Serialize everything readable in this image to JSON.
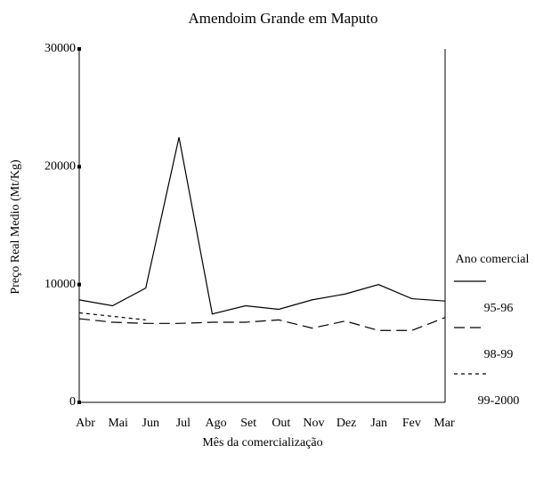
{
  "chart_data": {
    "type": "line",
    "title": "Amendoim Grande em Maputo",
    "x_label": "Mês da comercialização",
    "y_label": "Preço Real Medio (Mt/Kg)",
    "legend_title": "Ano comercial",
    "legend": "right",
    "categories": [
      "Abr",
      "Mai",
      "Jun",
      "Jul",
      "Ago",
      "Set",
      "Out",
      "Nov",
      "Dez",
      "Jan",
      "Fev",
      "Mar"
    ],
    "ylim": [
      0,
      30000
    ],
    "yticks": [
      0,
      10000,
      20000,
      30000
    ],
    "series": [
      {
        "name": "95-96",
        "color": "#000000",
        "dash": "none",
        "values": [
          8700,
          8200,
          9700,
          22500,
          7500,
          8200,
          7900,
          8700,
          9200,
          10000,
          8800,
          8600
        ]
      },
      {
        "name": "98-99",
        "color": "#000000",
        "dash": "12 6",
        "values": [
          7100,
          6800,
          6700,
          6700,
          6800,
          6800,
          7000,
          6300,
          6900,
          6100,
          6100,
          7200
        ]
      },
      {
        "name": "99-2000",
        "color": "#000000",
        "dash": "4 4",
        "values": [
          7600,
          7300,
          7000,
          null,
          null,
          null,
          null,
          null,
          null,
          null,
          null,
          null
        ]
      }
    ]
  }
}
